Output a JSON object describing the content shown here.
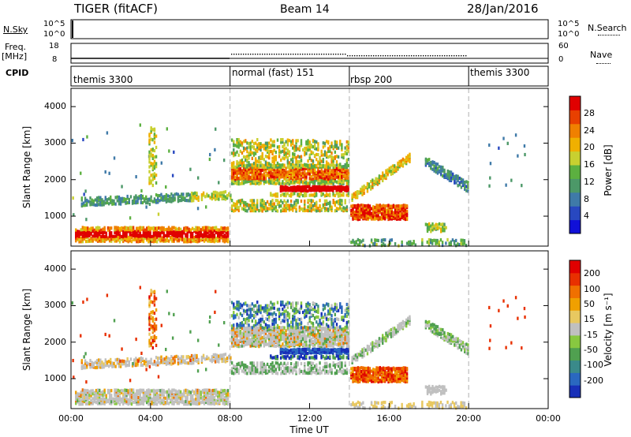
{
  "header": {
    "radar": "TIGER (fitACF)",
    "beam": "Beam 14",
    "date": "28/Jan/2016"
  },
  "top_panels": {
    "nsky_label": "N.Sky",
    "nsky_ticks": [
      "10^5",
      "10^0"
    ],
    "nsearch_label": "N.Search",
    "freq_label_line1": "Freq.",
    "freq_label_line2": "[MHz]",
    "freq_ticks": [
      "18",
      "8"
    ],
    "nave_label": "Nave",
    "nave_ticks": [
      "60",
      "0"
    ],
    "cpid_label": "CPID",
    "cpid_segments": [
      {
        "label": "themis 3300",
        "start": 0,
        "end": 8
      },
      {
        "label": "normal (fast) 151",
        "start": 8,
        "end": 14
      },
      {
        "label": "rbsp 200",
        "start": 14,
        "end": 20
      },
      {
        "label": "themis 3300",
        "start": 20,
        "end": 24
      }
    ]
  },
  "chart_data": [
    {
      "type": "heatmap",
      "name": "power",
      "ylabel": "Slant Range [km]",
      "ylim": [
        180,
        4500
      ],
      "yticks": [
        1000,
        2000,
        3000,
        4000
      ],
      "xlim": [
        0,
        24
      ],
      "colorbar": {
        "label": "Power [dB]",
        "ticks": [
          "4",
          "8",
          "12",
          "16",
          "20",
          "24",
          "28"
        ],
        "colors": [
          "#1010d8",
          "#2848c0",
          "#3f7aa8",
          "#4c9868",
          "#5cb040",
          "#c8d030",
          "#f0b000",
          "#f08000",
          "#e84000",
          "#e00000"
        ]
      }
    },
    {
      "type": "heatmap",
      "name": "velocity",
      "ylabel": "Slant Range [km]",
      "ylim": [
        180,
        4500
      ],
      "yticks": [
        1000,
        2000,
        3000,
        4000
      ],
      "xlim": [
        0,
        24
      ],
      "xlabel": "Time UT",
      "xticks": [
        "00:00",
        "04:00",
        "08:00",
        "12:00",
        "16:00",
        "20:00",
        "00:00"
      ],
      "colorbar": {
        "label": "Velocity [m s⁻¹]",
        "ticks": [
          "200",
          "100",
          "50",
          "15",
          "-15",
          "-50",
          "-100",
          "-200"
        ],
        "colors": [
          "#1830b8",
          "#2a68c0",
          "#3a8a8a",
          "#50a050",
          "#88c840",
          "#c0c0c0",
          "#e8c860",
          "#f0a000",
          "#f07000",
          "#e83000",
          "#e00000"
        ]
      }
    }
  ]
}
